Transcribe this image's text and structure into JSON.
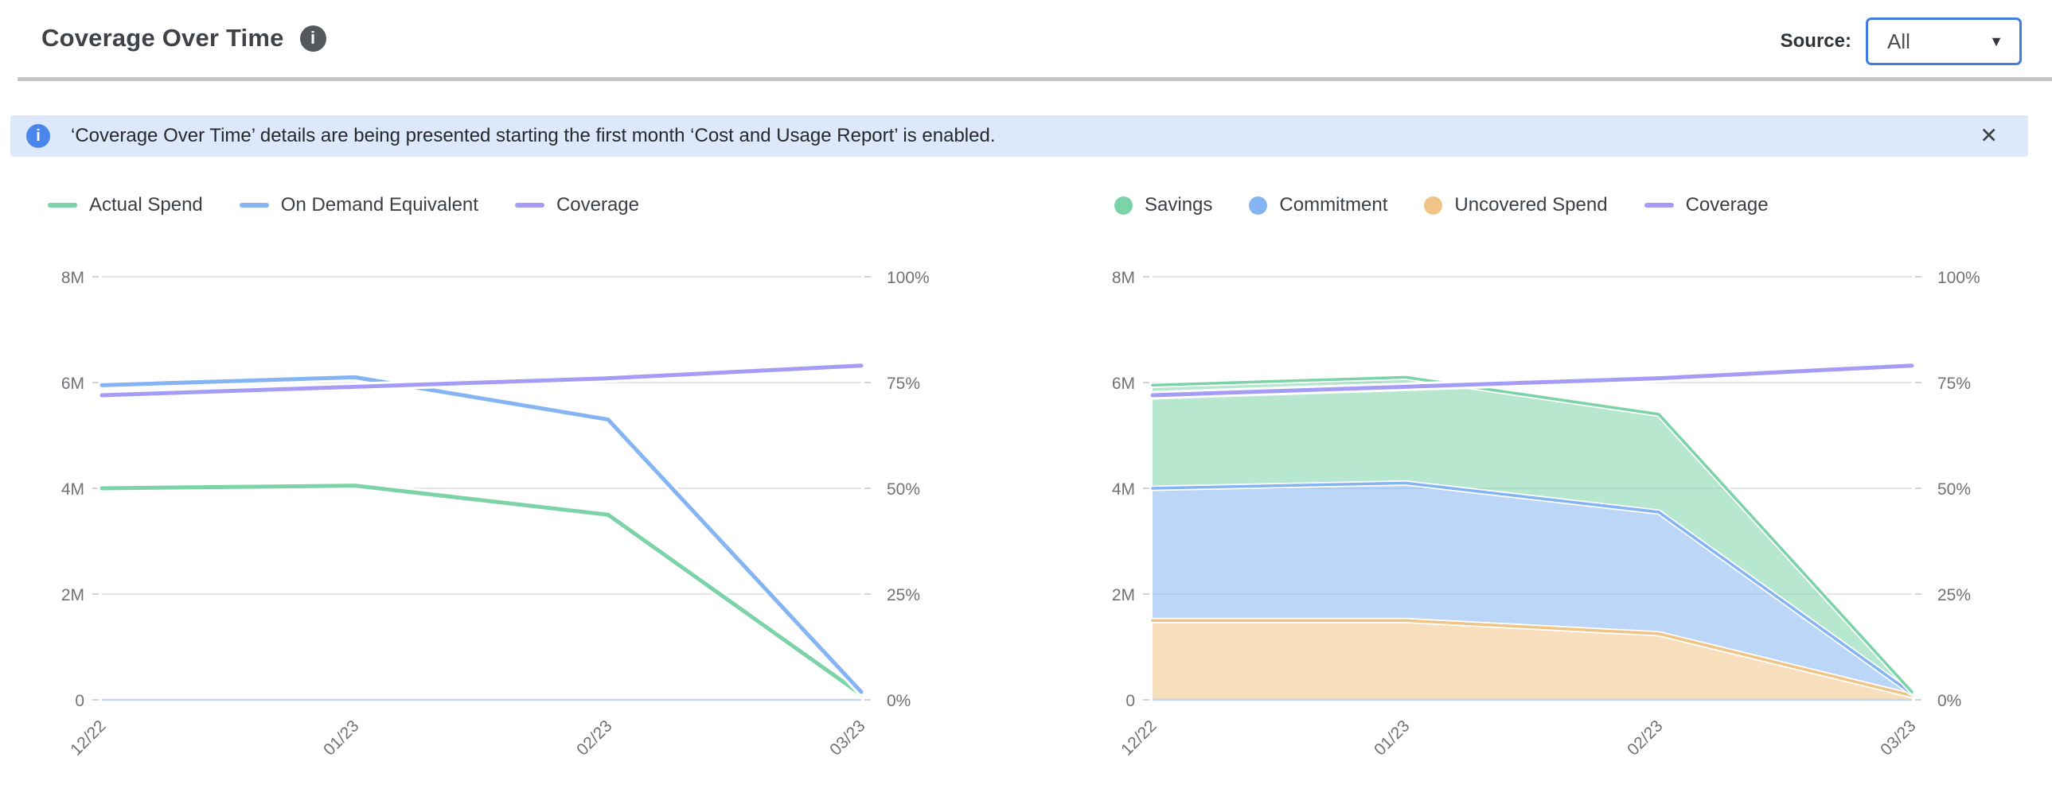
{
  "header": {
    "title": "Coverage Over Time",
    "info_icon": "i",
    "source_label": "Source:",
    "source_value": "All",
    "caret_icon": "▼"
  },
  "banner": {
    "icon": "i",
    "text": "‘Coverage Over Time’ details are being presented starting the first month ‘Cost and Usage Report’ is enabled.",
    "close_icon": "✕"
  },
  "colors": {
    "green": "#7cd3a8",
    "blue": "#85b4f2",
    "purple": "#a59df5",
    "orange": "#f0c487",
    "gridline": "#e4e4e6",
    "axis_line": "#c6d5ee",
    "axis_text": "#6f7276",
    "banner_bg": "#dde9fb",
    "banner_icon_bg": "#4b86ec",
    "select_border": "#3f7ee0"
  },
  "chart_data": [
    {
      "id": "spend-lines",
      "type": "line",
      "x": [
        "12/22",
        "01/23",
        "02/23",
        "03/23"
      ],
      "left_axis": {
        "labels": [
          "8M",
          "6M",
          "4M",
          "2M",
          "0"
        ],
        "max": 8,
        "unit": "M"
      },
      "right_axis": {
        "labels": [
          "100%",
          "75%",
          "50%",
          "25%",
          "0%"
        ],
        "max": 100,
        "unit": "%"
      },
      "legend": [
        {
          "label": "Actual Spend",
          "marker": "line",
          "color": "#7cd3a8"
        },
        {
          "label": "On Demand Equivalent",
          "marker": "line",
          "color": "#85b4f2"
        },
        {
          "label": "Coverage",
          "marker": "line",
          "color": "#a59df5"
        }
      ],
      "grid": true,
      "legend_position": "top-left",
      "series": [
        {
          "name": "Actual Spend",
          "type": "line",
          "axis": "left",
          "color": "#7cd3a8",
          "values": [
            4.0,
            4.05,
            3.5,
            0.1
          ]
        },
        {
          "name": "On Demand Equivalent",
          "type": "line",
          "axis": "left",
          "color": "#85b4f2",
          "values": [
            5.95,
            6.1,
            5.3,
            0.15
          ]
        },
        {
          "name": "Coverage",
          "type": "line",
          "axis": "right",
          "color": "#a59df5",
          "values": [
            72,
            74,
            76,
            79
          ]
        }
      ]
    },
    {
      "id": "coverage-stack",
      "type": "area",
      "x": [
        "12/22",
        "01/23",
        "02/23",
        "03/23"
      ],
      "left_axis": {
        "labels": [
          "8M",
          "6M",
          "4M",
          "2M",
          "0"
        ],
        "max": 8,
        "unit": "M"
      },
      "right_axis": {
        "labels": [
          "100%",
          "75%",
          "50%",
          "25%",
          "0%"
        ],
        "max": 100,
        "unit": "%"
      },
      "legend": [
        {
          "label": "Savings",
          "marker": "dot",
          "color": "#7cd3a8"
        },
        {
          "label": "Commitment",
          "marker": "dot",
          "color": "#85b4f2"
        },
        {
          "label": "Uncovered Spend",
          "marker": "dot",
          "color": "#f0c487"
        },
        {
          "label": "Coverage",
          "marker": "line",
          "color": "#a59df5"
        }
      ],
      "grid": true,
      "legend_position": "top-left",
      "series": [
        {
          "name": "Uncovered Spend",
          "type": "area",
          "stack": true,
          "axis": "left",
          "color": "#f0c487",
          "values": [
            1.5,
            1.5,
            1.25,
            0.08
          ]
        },
        {
          "name": "Commitment",
          "type": "area",
          "stack": true,
          "axis": "left",
          "color": "#85b4f2",
          "values": [
            2.5,
            2.6,
            2.3,
            0.04
          ]
        },
        {
          "name": "Savings",
          "type": "area",
          "stack": true,
          "axis": "left",
          "color": "#7cd3a8",
          "values": [
            1.95,
            2.0,
            1.85,
            0.03
          ]
        },
        {
          "name": "Coverage",
          "type": "line",
          "axis": "right",
          "color": "#a59df5",
          "values": [
            72,
            74,
            76,
            79
          ]
        }
      ]
    }
  ]
}
